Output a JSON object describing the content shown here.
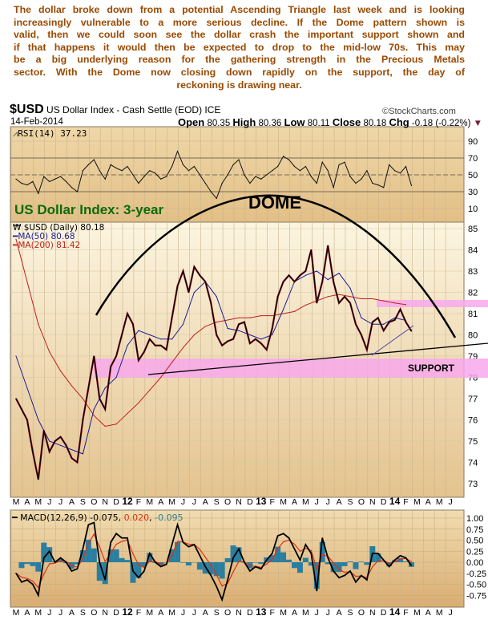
{
  "commentary": [
    "The dollar broke down from a potential Ascending Triangle last week and is looking",
    "increasingly vulnerable to a more serious decline. If the Dome pattern shown is",
    "valid, then we could soon see the dollar crash the important support shown and",
    "if that happens it would then be expected to drop to the mid-low 70s. This may",
    "be a big underlying reason for the gathering strength in the Precious Metals",
    "sector.  With the Dome now closing down rapidly on the support, the day of",
    "reckoning is drawing near."
  ],
  "header": {
    "symbol": "$USD",
    "name": "US Dollar Index - Cash Settle (EOD) ICE",
    "date": "14-Feb-2014",
    "copyright": "©StockCharts.com",
    "open_label": "Open",
    "open": "80.35",
    "high_label": "High",
    "high": "80.36",
    "low_label": "Low",
    "low": "80.11",
    "close_label": "Close",
    "close": "80.18",
    "chg_label": "Chg",
    "chg": "-0.18 (-0.22%)",
    "down_color": "#7a1a3a"
  },
  "chart_data": [
    {
      "type": "line",
      "panel": "rsi",
      "legend": "RSI(14) 37.23",
      "ylim": [
        0,
        100
      ],
      "yticks": [
        "90",
        "70",
        "50",
        "30",
        "10"
      ],
      "reference_lines": [
        70,
        50,
        30
      ],
      "series": [
        {
          "name": "RSI(14)",
          "color": "#000000",
          "values": [
            45,
            40,
            38,
            42,
            28,
            48,
            42,
            45,
            48,
            42,
            35,
            30,
            55,
            62,
            68,
            55,
            45,
            62,
            58,
            55,
            60,
            50,
            40,
            48,
            55,
            52,
            45,
            48,
            60,
            78,
            62,
            55,
            60,
            50,
            40,
            30,
            22,
            40,
            50,
            62,
            68,
            50,
            40,
            48,
            45,
            50,
            55,
            60,
            72,
            68,
            60,
            55,
            60,
            48,
            40,
            65,
            55,
            35,
            62,
            65,
            48,
            40,
            45,
            55,
            40,
            38,
            35,
            62,
            55,
            52,
            60,
            37.23
          ]
        }
      ]
    },
    {
      "type": "line",
      "panel": "price",
      "title": "US Dollar Index: 3-year",
      "title_color": "#0b6b0b",
      "ylim": [
        72.5,
        85.5
      ],
      "yticks": [
        "85",
        "84",
        "83",
        "82",
        "81",
        "80",
        "79",
        "78",
        "77",
        "76",
        "75",
        "74",
        "73"
      ],
      "x_start": "Mar 2011",
      "x_step": "half-month",
      "x_month_labels": [
        "M",
        "A",
        "M",
        "J",
        "J",
        "A",
        "S",
        "O",
        "N",
        "D",
        "12",
        "F",
        "M",
        "A",
        "M",
        "J",
        "J",
        "A",
        "S",
        "O",
        "N",
        "D",
        "13",
        "F",
        "M",
        "A",
        "M",
        "J",
        "J",
        "A",
        "S",
        "O",
        "N",
        "D",
        "14",
        "F",
        "M",
        "A",
        "M",
        "J"
      ],
      "series": [
        {
          "name": "$USD (Daily) 80.18",
          "color": "#000000",
          "values": [
            77.0,
            76.5,
            76.0,
            74.5,
            73.2,
            75.5,
            74.5,
            75.0,
            75.2,
            74.8,
            74.2,
            74.0,
            76.0,
            77.5,
            79.0,
            77.0,
            76.5,
            78.5,
            79.0,
            80.0,
            81.0,
            80.5,
            78.8,
            79.2,
            79.8,
            79.5,
            79.5,
            79.3,
            80.8,
            82.3,
            83.0,
            82.0,
            83.2,
            82.8,
            82.5,
            81.5,
            80.0,
            79.5,
            79.7,
            79.8,
            80.5,
            80.6,
            79.6,
            79.8,
            79.6,
            79.3,
            80.3,
            81.8,
            82.5,
            82.8,
            82.5,
            82.8,
            83.0,
            84.0,
            81.5,
            82.5,
            84.2,
            82.5,
            81.5,
            81.8,
            81.5,
            80.5,
            80.0,
            79.3,
            80.6,
            80.8,
            80.2,
            80.6,
            80.7,
            81.2,
            80.6,
            80.18
          ]
        },
        {
          "name": "MA(50) 80.68",
          "color": "#1c1c9a",
          "step": "month",
          "values": [
            79.0,
            77.5,
            76.0,
            75.0,
            74.8,
            74.6,
            74.4,
            76.5,
            77.5,
            78.0,
            79.5,
            80.2,
            80.0,
            79.8,
            79.8,
            80.5,
            82.0,
            82.5,
            81.8,
            80.3,
            80.2,
            80.0,
            79.8,
            80.0,
            81.2,
            82.5,
            82.8,
            83.0,
            82.6,
            82.9,
            82.2,
            80.8,
            80.5,
            80.5,
            80.8,
            80.68
          ]
        },
        {
          "name": "MA(200) 81.42",
          "color": "#c0201a",
          "step": "month",
          "values": [
            84.5,
            82.5,
            80.5,
            79.2,
            78.3,
            77.6,
            77.0,
            76.2,
            75.7,
            75.8,
            76.3,
            76.8,
            77.4,
            78.0,
            78.7,
            79.4,
            80.0,
            80.4,
            80.6,
            80.7,
            80.8,
            80.8,
            80.9,
            80.9,
            81.0,
            81.1,
            81.4,
            81.6,
            81.8,
            81.9,
            81.8,
            81.7,
            81.7,
            81.6,
            81.5,
            81.42
          ]
        }
      ],
      "annotations": {
        "dome_label": "DOME",
        "support_label": "SUPPORT",
        "band_color": "#f7a8ec"
      }
    },
    {
      "type": "line",
      "panel": "macd",
      "legend_prefix": "MACD(12,26,9)",
      "legend_macd": "-0.075",
      "legend_signal": "0.020",
      "legend_hist": "-0.095",
      "ylim": [
        -0.9,
        1.1
      ],
      "yticks": [
        "1.00",
        "0.75",
        "0.50",
        "0.25",
        "0.00",
        "-0.25",
        "-0.50",
        "-0.75"
      ],
      "series": [
        {
          "name": "MACD",
          "color": "#000000",
          "values": [
            -0.25,
            -0.45,
            -0.4,
            -0.5,
            -0.75,
            0.1,
            0.25,
            0.0,
            0.1,
            0.0,
            -0.2,
            -0.15,
            0.3,
            0.85,
            0.9,
            0.0,
            -0.4,
            0.45,
            0.65,
            0.55,
            0.55,
            -0.2,
            -0.35,
            -0.2,
            0.2,
            0.0,
            -0.1,
            -0.05,
            0.4,
            0.85,
            0.45,
            0.35,
            0.4,
            0.15,
            -0.1,
            -0.3,
            -0.55,
            -0.85,
            -0.4,
            0.1,
            0.3,
            0.0,
            -0.2,
            -0.1,
            -0.15,
            0.05,
            0.2,
            0.6,
            0.65,
            0.55,
            0.3,
            0.05,
            0.4,
            0.2,
            -0.65,
            0.55,
            0.1,
            -0.2,
            -0.35,
            -0.3,
            -0.2,
            -0.45,
            -0.3,
            -0.4,
            0.2,
            0.2,
            0.05,
            -0.1,
            0.05,
            0.15,
            0.1,
            -0.075
          ]
        },
        {
          "name": "Signal",
          "color": "#e03010"
        },
        {
          "name": "Histogram",
          "color": "#2a7fa0"
        }
      ]
    }
  ]
}
